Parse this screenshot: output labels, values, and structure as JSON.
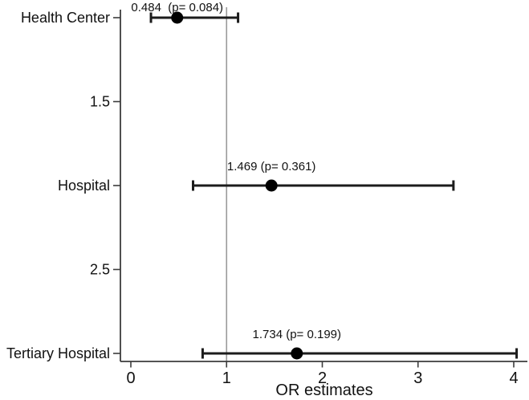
{
  "chart_data": {
    "type": "scatter",
    "variant": "forest-plot",
    "title": "",
    "xlabel": "OR estimates",
    "ylabel": "",
    "xlim": [
      0,
      4.15
    ],
    "xticks": [
      0,
      1,
      2,
      3,
      4
    ],
    "reference_line_x": 1,
    "grid": false,
    "legend": "none",
    "background": "#ffffff",
    "colors": {
      "marker": "#000000",
      "error_bar": "#1c1c1c",
      "axis": "#3c3c3c",
      "reference_line": "#9a9a9a",
      "text": "#111111"
    },
    "y_axis_labels": [
      "Health Center",
      "1.5",
      "Hospital",
      "2.5",
      "Tertiary Hospital"
    ],
    "points": [
      {
        "category": "Health Center",
        "or": 0.484,
        "p_value": 0.084,
        "ci_low": 0.21,
        "ci_high": 1.12,
        "annotation": "0.484  (p= 0.084)"
      },
      {
        "category": "Hospital",
        "or": 1.469,
        "p_value": 0.361,
        "ci_low": 0.65,
        "ci_high": 3.37,
        "annotation": "1.469 (p= 0.361)"
      },
      {
        "category": "Tertiary Hospital",
        "or": 1.734,
        "p_value": 0.199,
        "ci_low": 0.75,
        "ci_high": 4.03,
        "annotation": "1.734 (p= 0.199)"
      }
    ]
  }
}
